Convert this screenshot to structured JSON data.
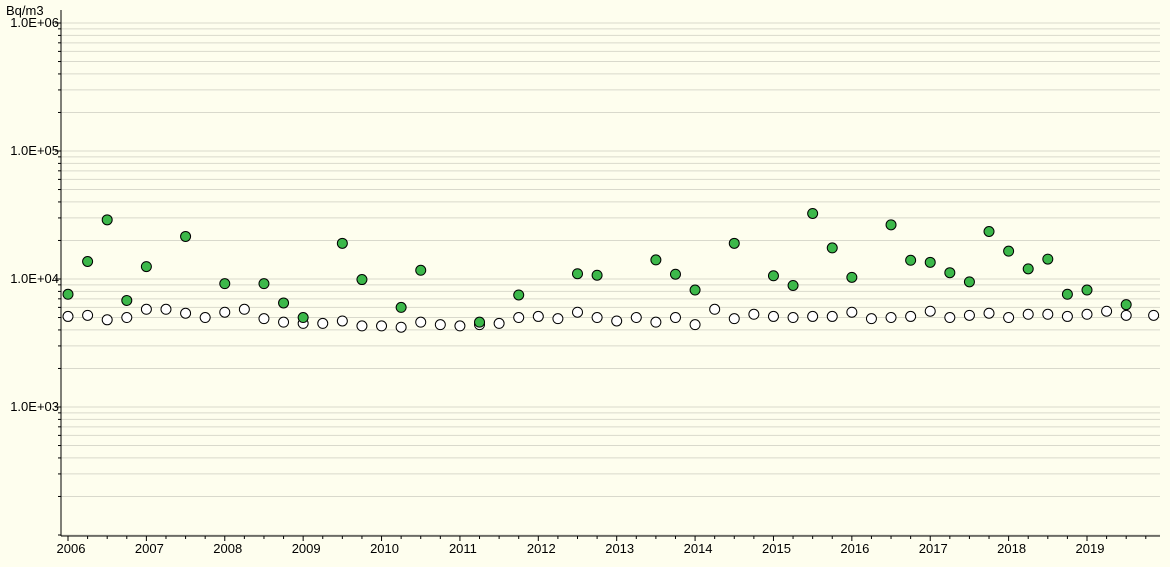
{
  "chart_data": {
    "type": "scatter",
    "ylabel": "Bq/m3",
    "yscale": "log",
    "ylim": [
      100,
      1000000
    ],
    "xlim": [
      2005.95,
      2019.88
    ],
    "x_tick_labels": [
      "2006",
      "2007",
      "2008",
      "2009",
      "2010",
      "2011",
      "2012",
      "2013",
      "2014",
      "2015",
      "2016",
      "2017",
      "2018",
      "2019"
    ],
    "y_tick_labels": [
      {
        "value": 1000000,
        "label": "1.0E+06"
      },
      {
        "value": 100000,
        "label": "1.0E+05"
      },
      {
        "value": 10000,
        "label": "1.0E+04"
      },
      {
        "value": 1000,
        "label": "1.0E+03"
      }
    ],
    "grid": true,
    "series": [
      {
        "style": "filled",
        "color": "#3cb84a",
        "points": [
          [
            2006.0,
            7600
          ],
          [
            2006.25,
            13700
          ],
          [
            2006.5,
            29000
          ],
          [
            2006.75,
            6800
          ],
          [
            2007.0,
            12500
          ],
          [
            2007.5,
            21500
          ],
          [
            2008.0,
            9200
          ],
          [
            2008.5,
            9200
          ],
          [
            2008.75,
            6500
          ],
          [
            2009.0,
            5000
          ],
          [
            2009.5,
            19000
          ],
          [
            2009.75,
            9900
          ],
          [
            2010.25,
            6000
          ],
          [
            2010.5,
            11700
          ],
          [
            2011.25,
            4600
          ],
          [
            2011.75,
            7500
          ],
          [
            2012.5,
            11000
          ],
          [
            2012.75,
            10700
          ],
          [
            2013.5,
            14100
          ],
          [
            2013.75,
            10900
          ],
          [
            2014.0,
            8200
          ],
          [
            2014.5,
            19000
          ],
          [
            2015.0,
            10600
          ],
          [
            2015.25,
            8900
          ],
          [
            2015.5,
            32500
          ],
          [
            2015.75,
            17500
          ],
          [
            2016.0,
            10300
          ],
          [
            2016.5,
            26500
          ],
          [
            2016.75,
            14000
          ],
          [
            2017.0,
            13500
          ],
          [
            2017.25,
            11200
          ],
          [
            2017.5,
            9500
          ],
          [
            2017.75,
            23500
          ],
          [
            2018.0,
            16500
          ],
          [
            2018.25,
            12000
          ],
          [
            2018.5,
            14300
          ],
          [
            2018.75,
            7600
          ],
          [
            2019.0,
            8200
          ],
          [
            2019.5,
            6300
          ]
        ]
      },
      {
        "style": "hollow",
        "color": "#ffffff",
        "points": [
          [
            2006.0,
            5100
          ],
          [
            2006.25,
            5200
          ],
          [
            2006.5,
            4800
          ],
          [
            2006.75,
            5000
          ],
          [
            2007.0,
            5800
          ],
          [
            2007.25,
            5800
          ],
          [
            2007.5,
            5400
          ],
          [
            2007.75,
            5000
          ],
          [
            2008.0,
            5500
          ],
          [
            2008.25,
            5800
          ],
          [
            2008.5,
            4900
          ],
          [
            2008.75,
            4600
          ],
          [
            2009.0,
            4500
          ],
          [
            2009.25,
            4500
          ],
          [
            2009.5,
            4700
          ],
          [
            2009.75,
            4300
          ],
          [
            2010.0,
            4300
          ],
          [
            2010.25,
            4200
          ],
          [
            2010.5,
            4600
          ],
          [
            2010.75,
            4400
          ],
          [
            2011.0,
            4300
          ],
          [
            2011.25,
            4400
          ],
          [
            2011.5,
            4500
          ],
          [
            2011.75,
            5000
          ],
          [
            2012.0,
            5100
          ],
          [
            2012.25,
            4900
          ],
          [
            2012.5,
            5500
          ],
          [
            2012.75,
            5000
          ],
          [
            2013.0,
            4700
          ],
          [
            2013.25,
            5000
          ],
          [
            2013.5,
            4600
          ],
          [
            2013.75,
            5000
          ],
          [
            2014.0,
            4400
          ],
          [
            2014.25,
            5800
          ],
          [
            2014.5,
            4900
          ],
          [
            2014.75,
            5300
          ],
          [
            2015.0,
            5100
          ],
          [
            2015.25,
            5000
          ],
          [
            2015.5,
            5100
          ],
          [
            2015.75,
            5100
          ],
          [
            2016.0,
            5500
          ],
          [
            2016.25,
            4900
          ],
          [
            2016.5,
            5000
          ],
          [
            2016.75,
            5100
          ],
          [
            2017.0,
            5600
          ],
          [
            2017.25,
            5000
          ],
          [
            2017.5,
            5200
          ],
          [
            2017.75,
            5400
          ],
          [
            2018.0,
            5000
          ],
          [
            2018.25,
            5300
          ],
          [
            2018.5,
            5300
          ],
          [
            2018.75,
            5100
          ],
          [
            2019.0,
            5300
          ],
          [
            2019.25,
            5600
          ],
          [
            2019.5,
            5200
          ],
          [
            2019.85,
            5200
          ]
        ]
      }
    ]
  }
}
